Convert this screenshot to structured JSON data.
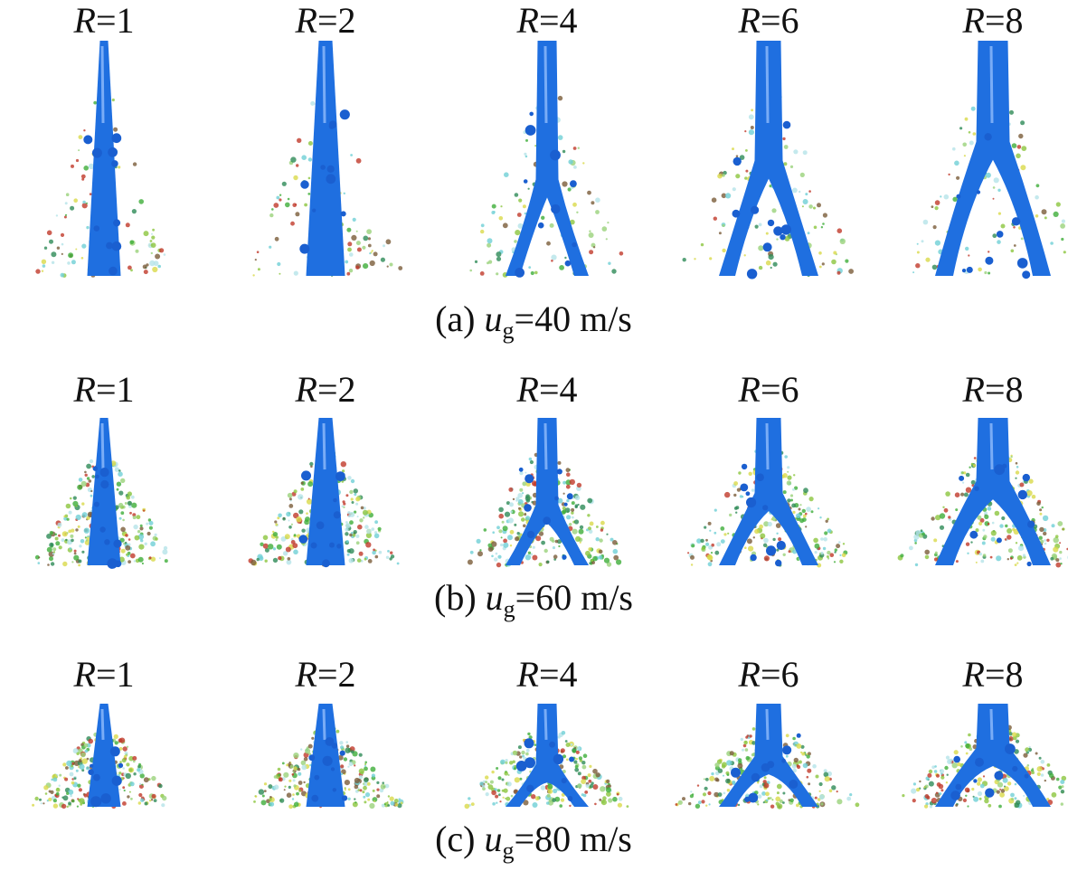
{
  "rows": [
    {
      "panels": [
        {
          "symbol": "R",
          "value": "=1"
        },
        {
          "symbol": "R",
          "value": "=2"
        },
        {
          "symbol": "R",
          "value": "=4"
        },
        {
          "symbol": "R",
          "value": "=6"
        },
        {
          "symbol": "R",
          "value": "=8"
        }
      ],
      "caption": {
        "prefix": "(a)",
        "symbol": "u",
        "subscript": "g",
        "suffix": "=40 m/s"
      }
    },
    {
      "panels": [
        {
          "symbol": "R",
          "value": "=1"
        },
        {
          "symbol": "R",
          "value": "=2"
        },
        {
          "symbol": "R",
          "value": "=4"
        },
        {
          "symbol": "R",
          "value": "=6"
        },
        {
          "symbol": "R",
          "value": "=8"
        }
      ],
      "caption": {
        "prefix": "(b)",
        "symbol": "u",
        "subscript": "g",
        "suffix": "=60 m/s"
      }
    },
    {
      "panels": [
        {
          "symbol": "R",
          "value": "=1"
        },
        {
          "symbol": "R",
          "value": "=2"
        },
        {
          "symbol": "R",
          "value": "=4"
        },
        {
          "symbol": "R",
          "value": "=6"
        },
        {
          "symbol": "R",
          "value": "=8"
        }
      ],
      "caption": {
        "prefix": "(c)",
        "symbol": "u",
        "subscript": "g",
        "suffix": "=80 m/s"
      }
    }
  ]
}
